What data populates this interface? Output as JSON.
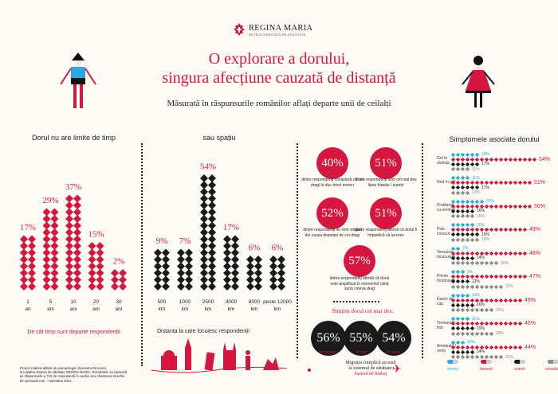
{
  "header": {
    "brand": "REGINA MARIA",
    "brand_sub": "REȚEAUA PRIVATĂ DE SĂNĂTATE",
    "title_line1": "O explorare a dorului,",
    "title_line2": "singura afecțiune cauzată de distanță",
    "subtitle": "Măsurată în răspunsurile românilor aflați departe unii de ceilalți"
  },
  "colors": {
    "accent": "#d5173f",
    "blue": "#2aa8e0",
    "black": "#1a1a1a",
    "gray": "#8a8a8a",
    "background": "#fdfbf5"
  },
  "chart_data": [
    {
      "type": "bar",
      "title": "Dorul nu are limite de timp",
      "xlabel": "De cât timp sunt departe respondenții",
      "categories": [
        "1 an",
        "5 ani",
        "10 ani",
        "20 ani",
        "30 ani"
      ],
      "values": [
        17,
        29,
        37,
        15,
        2
      ],
      "labels": [
        "17%",
        "29%",
        "37%",
        "15%",
        "2%"
      ],
      "unit": "%"
    },
    {
      "type": "bar",
      "title": "sau spațiu",
      "xlabel": "Distanța la care locuiesc respondenții",
      "categories": [
        "500 km",
        "1000 km",
        "2500 km",
        "4000 km",
        "8000 km",
        "peste 12000 km"
      ],
      "values": [
        9,
        7,
        54,
        17,
        6,
        6
      ],
      "labels": [
        "9%",
        "7%",
        "54%",
        "17%",
        "6%",
        "6%"
      ],
      "unit": "%"
    },
    {
      "type": "bar",
      "orientation": "horizontal",
      "title": "Simptomele asociate dorului",
      "categories": [
        "Gol în stomac",
        "Nod în gât",
        "Probleme cu somnul",
        "Puls crescut",
        "Tensiune musculară",
        "Privire încețoșată",
        "Dureri de cap",
        "Tremurat / fiori",
        "Amețeală / vertij"
      ],
      "series": [
        {
          "name": "mereu",
          "color": "#2aa8e0",
          "values": [
            18,
            11,
            20,
            15,
            7,
            9,
            13,
            11,
            10
          ]
        },
        {
          "name": "deseori",
          "color": "#d5173f",
          "values": [
            54,
            51,
            50,
            49,
            48,
            47,
            46,
            45,
            44
          ]
        },
        {
          "name": "uneori",
          "color": "#1a1a1a",
          "values": [
            17,
            17,
            16,
            19,
            14,
            12,
            16,
            15,
            14
          ]
        },
        {
          "name": "niciodată",
          "color": "#8a8a8a",
          "values": [
            11,
            12,
            15,
            18,
            30,
            32,
            26,
            28,
            32
          ]
        }
      ],
      "legend": "bottom"
    }
  ],
  "stats": [
    {
      "value": "40%",
      "text": "dintre respondenți consideră că cei dragi le duc dorul mereu"
    },
    {
      "value": "51%",
      "text": "dintre respondenți simt cel mai des lipsa fratelui / surorii"
    },
    {
      "value": "52%",
      "text": "dintre respondenți se simt singuri din cauza distanței de cei dragi"
    },
    {
      "value": "51%",
      "text": "dintre respondenți afirmă că dorul îi împiedică să lucreze"
    },
    {
      "value": "57%",
      "text": "dintre respondenți afirmă că dorul este amplificat în momentul când sună cineva drag"
    }
  ],
  "felt": {
    "title": "Simțim dorul cel mai des:",
    "items": [
      {
        "value": "56%",
        "label": "în stomac"
      },
      {
        "value": "55%",
        "label": "în cap"
      },
      {
        "value": "54%",
        "label": "în piept"
      }
    ]
  },
  "migration": {
    "line1": "Migrația complică accesul",
    "line2": "la sistemul de sănătate:",
    "line3": "barieră de limbaj"
  },
  "footnote": [
    "Proiect realizat alături de antropologul Alexandru Dincovici,",
    "la inițiativa Rețelei de sănătate REGINA MARIA. Rezultatele se bazează",
    "pe răspunsurile a 733 de respondenți în cadrul unui chestionar deschis",
    "din perioada mai – noiembrie 2021."
  ]
}
